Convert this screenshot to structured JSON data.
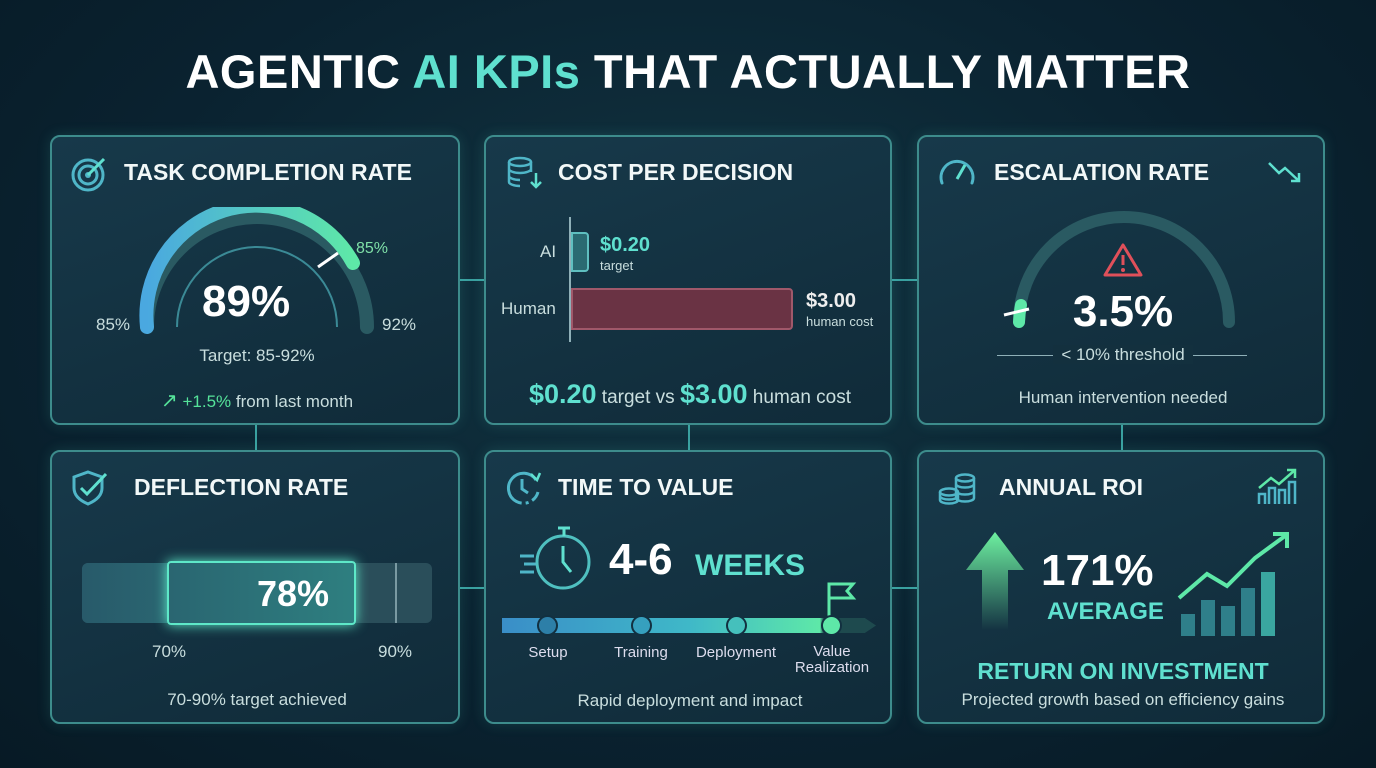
{
  "title": {
    "part1": "AGENTIC ",
    "highlight": "AI KPIs",
    "part2": " THAT ACTUALLY MATTER"
  },
  "colors": {
    "accent": "#5fe0cf",
    "green": "#55e39a",
    "human_bar": "#7a3b4c",
    "warning": "#e0505a",
    "border": "#3d8c8c"
  },
  "task_completion": {
    "title": "TASK COMPLETION RATE",
    "icon": "target-icon",
    "value": "89%",
    "gauge_value": 89,
    "gauge_min": 85,
    "gauge_max": 92,
    "min_label": "85%",
    "max_label": "92%",
    "marker_label": "85%",
    "target": "Target: 85-92%",
    "change_value": "+1.5%",
    "change_text": " from last month"
  },
  "cost_per_decision": {
    "title": "COST PER DECISION",
    "icon": "database-down-icon",
    "ai_label": "AI",
    "ai_value": "$0.20",
    "ai_sub": "target",
    "human_label": "Human",
    "human_value": "$3.00",
    "human_sub": "human cost",
    "summary_a": "$0.20",
    "summary_b": " target vs ",
    "summary_c": "$3.00",
    "summary_d": " human cost"
  },
  "escalation": {
    "title": "ESCALATION RATE",
    "icon": "speedometer-icon",
    "trend_icon": "trend-down-icon",
    "value": "3.5%",
    "threshold": "< 10% threshold",
    "caption": "Human intervention needed"
  },
  "deflection": {
    "title": "DEFLECTION RATE",
    "icon": "shield-check-icon",
    "value": "78%",
    "fill_percent": 78,
    "min_label": "70%",
    "max_label": "90%",
    "caption": "70-90% target achieved"
  },
  "time_to_value": {
    "title": "TIME TO VALUE",
    "icon": "clock-refresh-icon",
    "value": "4-6",
    "unit": "WEEKS",
    "steps": [
      "Setup",
      "Training",
      "Deployment",
      "Value Realization"
    ],
    "caption": "Rapid deployment and impact"
  },
  "annual_roi": {
    "title": "ANNUAL ROI",
    "icon": "coins-icon",
    "chart_icon": "bar-chart-up-icon",
    "value": "171%",
    "sub": "AVERAGE",
    "heading": "RETURN ON INVESTMENT",
    "caption": "Projected growth based on efficiency gains"
  }
}
